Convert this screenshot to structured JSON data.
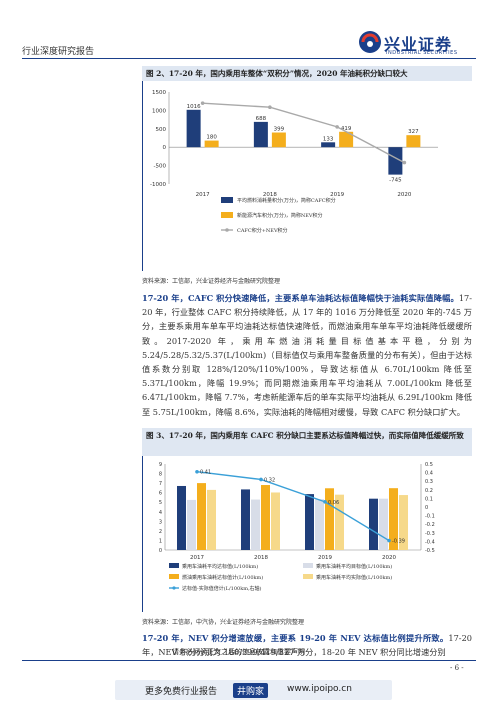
{
  "header": {
    "report_type": "行业深度研究报告",
    "logo_cn": "兴业证券",
    "logo_en": "INDUSTRIAL SECURITIES"
  },
  "figure2": {
    "title": "图 2、17-20 年，国内乘用车整体“双积分”情况，2020 年油耗积分缺口较大",
    "source": "资料来源：工信部，兴业证券经济与金融研究院整理",
    "legend": [
      "平均燃料消耗量积分(万分)，简称CAFC积分",
      "新能源汽车积分(万分)，简称NEV积分",
      "CAFC积分+NEV积分"
    ],
    "yticks": [
      "1500",
      "1000",
      "500",
      "0",
      "-500",
      "-1000"
    ]
  },
  "figure3": {
    "title": "图 3、17-20 年，国内乘用车 CAFC 积分缺口主要系达标值降幅过快，而实际值降低缓缓所致",
    "source": "资料来源：工信部，中汽协，兴业证券经济与金融研究院整理",
    "legend": [
      "乘用车油耗平均达标值(L/100km)",
      "乘用车油耗平均目标值(L/100km)",
      "燃油乘用车油耗达标值计(L/100km)",
      "乘用车油耗平均实际值(L/100km)",
      "达标值-实际值倍计(L/100km,右轴)"
    ],
    "yticks_left": [
      "9",
      "8",
      "7",
      "6",
      "5",
      "4",
      "3",
      "2",
      "1",
      "0"
    ],
    "yticks_right": [
      "0.5",
      "0.4",
      "0.3",
      "0.2",
      "0.1",
      "0",
      "-0.1",
      "-0.2",
      "-0.3",
      "-0.4",
      "-0.5"
    ]
  },
  "paragraph1": {
    "bold": "17-20 年，CAFC 积分快速降低，主要系单车油耗达标值降幅快于油耗实际值降幅。",
    "text": "17-20 年，行业整体 CAFC 积分持续降低，从 17 年的 1016 万分降低至 2020 年的-745 万分，主要系乘用车单车平均油耗达标值快速降低，而燃油乘用车单车平均油耗降低缓缓所致。2017-2020 年，乘用车燃油消耗量目标值基本平稳，分别为 5.24/5.28/5.32/5.37(L/100km)（目标值仅与乘用车整备质量的分布有关），但由于达标值系数分别取 128%/120%/110%/100%，导致达标值从 6.70L/100km 降低至 5.37L/100km，降幅 19.9%；而同期燃油乘用车平均油耗从 7.00L/100km 降低至 6.47L/100km，降幅 7.7%，考虑新能源车后的单车实际平均油耗从 6.29L/100km 降低至 5.75L/100km，降幅 8.6%，实际油耗的降幅相对缓慢，导致 CAFC 积分缺口扩大。"
  },
  "paragraph2": {
    "bold": "17-20 年，NEV 积分增速放缓，主要系 19-20 年 NEV 达标值比例提升所致。",
    "text": "17-20 年，NEV 积分分别为 180/399/419/327 万分，18-20 年 NEV 积分同比增速分别"
  },
  "footer": {
    "disclaimer": "请务必阅读正文之后的信息披露和重要声明",
    "page": "- 6 -",
    "banner_left": "更多免费行业报告",
    "banner_badge": "井购家",
    "banner_right": "www.ipoipo.cn"
  },
  "chart_data": [
    {
      "type": "bar",
      "categories": [
        "2017",
        "2018",
        "2019",
        "2020"
      ],
      "series": [
        {
          "name": "平均燃料消耗量积分(万分)，简称CAFC积分",
          "values": [
            1016,
            688,
            133,
            -745
          ],
          "color": "#1f3e7a"
        },
        {
          "name": "新能源汽车积分(万分)，简称NEV积分",
          "values": [
            180,
            399,
            419,
            327
          ],
          "color": "#f4ae1c"
        },
        {
          "name": "CAFC积分+NEV积分",
          "type": "line",
          "values": [
            1196,
            1087,
            552,
            -418
          ],
          "color": "#a9a9a9"
        }
      ],
      "ylim": [
        -1000,
        1500
      ]
    },
    {
      "type": "bar",
      "categories": [
        "2017",
        "2018",
        "2019",
        "2020"
      ],
      "series": [
        {
          "name": "乘用车油耗平均达标值(L/100km)",
          "values": [
            6.7,
            6.34,
            5.85,
            5.37
          ],
          "color": "#1f3e7a"
        },
        {
          "name": "乘用车油耗平均目标值(L/100km)",
          "values": [
            5.24,
            5.28,
            5.32,
            5.37
          ],
          "color": "#d8dde8"
        },
        {
          "name": "燃油乘用车油耗达标值计(L/100km)",
          "values": [
            7.0,
            6.8,
            6.46,
            6.47
          ],
          "color": "#f4ae1c"
        },
        {
          "name": "乘用车油耗平均实际值(L/100km)",
          "values": [
            6.29,
            6.02,
            5.79,
            5.75
          ],
          "color": "#f6d98a"
        },
        {
          "name": "达标值-实际值倍计(L/100km,右轴)",
          "type": "line",
          "axis": "right",
          "values": [
            0.41,
            0.32,
            0.06,
            -0.39
          ],
          "color": "#3aa0d8"
        }
      ],
      "ylim": [
        0,
        9
      ],
      "y2lim": [
        -0.5,
        0.5
      ]
    }
  ]
}
